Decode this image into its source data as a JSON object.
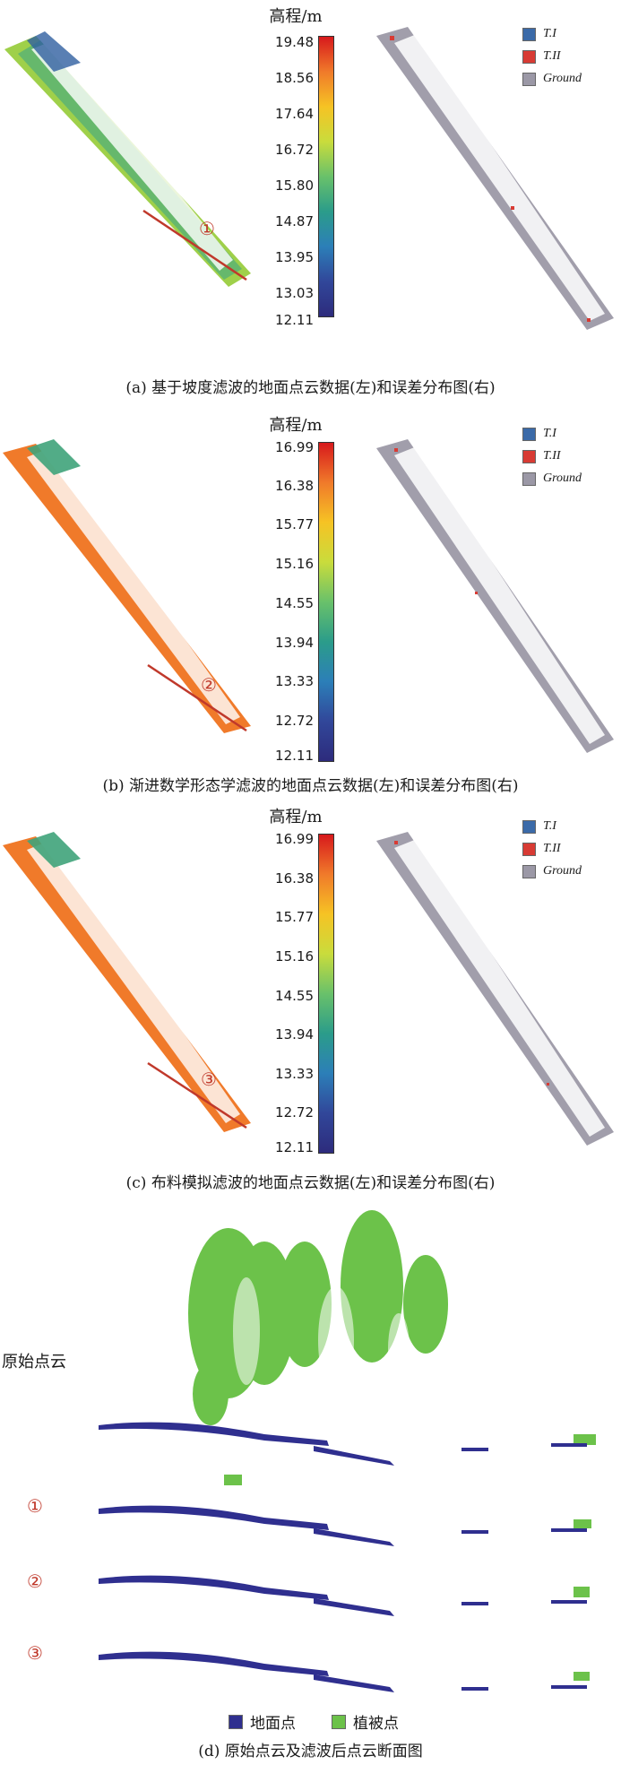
{
  "panels": [
    {
      "caption": "(a) 基于坡度滤波的地面点云数据(左)和误差分布图(右)",
      "colorbar_title": "高程/m",
      "ticks": [
        "19.48",
        "18.56",
        "17.64",
        "16.72",
        "15.80",
        "14.87",
        "13.95",
        "13.03",
        "12.11"
      ],
      "marker": "①",
      "scheme": "viridis"
    },
    {
      "caption": "(b) 渐进数学形态学滤波的地面点云数据(左)和误差分布图(右)",
      "colorbar_title": "高程/m",
      "ticks": [
        "16.99",
        "16.38",
        "15.77",
        "15.16",
        "14.55",
        "13.94",
        "13.33",
        "12.72",
        "12.11"
      ],
      "marker": "②",
      "scheme": "spectral"
    },
    {
      "caption": "(c) 布料模拟滤波的地面点云数据(左)和误差分布图(右)",
      "colorbar_title": "高程/m",
      "ticks": [
        "16.99",
        "16.38",
        "15.77",
        "15.16",
        "14.55",
        "13.94",
        "13.33",
        "12.72",
        "12.11"
      ],
      "marker": "③",
      "scheme": "spectral"
    }
  ],
  "legend": [
    {
      "label": "T.I",
      "color": "#3b6aa8"
    },
    {
      "label": "T.II",
      "color": "#d83b34"
    },
    {
      "label": "Ground",
      "color": "#9b98a6"
    }
  ],
  "section": {
    "row_labels": [
      "原始点云",
      "①",
      "②",
      "③"
    ],
    "legend_ground": "地面点",
    "legend_veg": "植被点",
    "ground_color": "#2f2f8f",
    "veg_color": "#6cc24a",
    "caption": "(d) 原始点云及滤波后点云断面图"
  }
}
